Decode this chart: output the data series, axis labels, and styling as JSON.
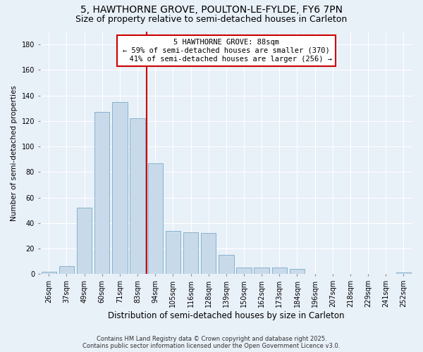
{
  "title": "5, HAWTHORNE GROVE, POULTON-LE-FYLDE, FY6 7PN",
  "subtitle": "Size of property relative to semi-detached houses in Carleton",
  "xlabel": "Distribution of semi-detached houses by size in Carleton",
  "ylabel": "Number of semi-detached properties",
  "categories": [
    "26sqm",
    "37sqm",
    "49sqm",
    "60sqm",
    "71sqm",
    "83sqm",
    "94sqm",
    "105sqm",
    "116sqm",
    "128sqm",
    "139sqm",
    "150sqm",
    "162sqm",
    "173sqm",
    "184sqm",
    "196sqm",
    "207sqm",
    "218sqm",
    "229sqm",
    "241sqm",
    "252sqm"
  ],
  "values": [
    2,
    6,
    52,
    127,
    135,
    122,
    87,
    34,
    33,
    32,
    15,
    5,
    5,
    5,
    4,
    0,
    0,
    0,
    0,
    0,
    1
  ],
  "bar_color": "#c8daea",
  "bar_edge_color": "#7aaac8",
  "property_label": "5 HAWTHORNE GROVE: 88sqm",
  "pct_smaller": 59,
  "count_smaller": 370,
  "pct_larger": 41,
  "count_larger": 256,
  "vline_color": "#cc0000",
  "annotation_box_color": "#cc0000",
  "bg_color": "#e8f0f8",
  "grid_color": "#ffffff",
  "ylim": [
    0,
    190
  ],
  "yticks": [
    0,
    20,
    40,
    60,
    80,
    100,
    120,
    140,
    160,
    180
  ],
  "footer": "Contains HM Land Registry data © Crown copyright and database right 2025.\nContains public sector information licensed under the Open Government Licence v3.0.",
  "title_fontsize": 10,
  "subtitle_fontsize": 9,
  "xlabel_fontsize": 8.5,
  "ylabel_fontsize": 7.5,
  "tick_fontsize": 7,
  "footer_fontsize": 6
}
